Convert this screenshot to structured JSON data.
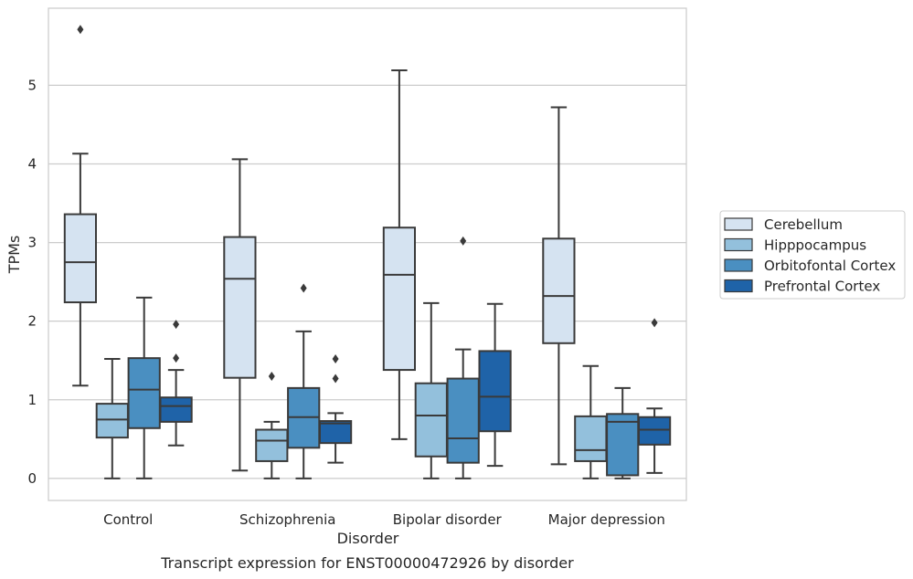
{
  "chart_data": {
    "type": "box",
    "xlabel": "Disorder",
    "ylabel": "TPMs",
    "caption": "Transcript expression for ENST00000472926 by disorder",
    "ylim": [
      -0.28,
      5.98
    ],
    "yticks": [
      "0",
      "1",
      "2",
      "3",
      "4",
      "5"
    ],
    "categories": [
      "Control",
      "Schizophrenia",
      "Bipolar disorder",
      "Major depression"
    ],
    "grid": "horizontal",
    "legend_position": "right",
    "series": [
      {
        "name": "Cerebellum",
        "color": "#d5e3f1",
        "boxes": [
          {
            "whislo": 1.18,
            "q1": 2.24,
            "med": 2.75,
            "q3": 3.36,
            "whishi": 4.13,
            "fliers": [
              5.71
            ]
          },
          {
            "whislo": 0.1,
            "q1": 1.28,
            "med": 2.54,
            "q3": 3.07,
            "whishi": 4.06,
            "fliers": []
          },
          {
            "whislo": 0.5,
            "q1": 1.38,
            "med": 2.59,
            "q3": 3.19,
            "whishi": 5.19,
            "fliers": []
          },
          {
            "whislo": 0.18,
            "q1": 1.72,
            "med": 2.32,
            "q3": 3.05,
            "whishi": 4.72,
            "fliers": []
          }
        ]
      },
      {
        "name": "Hipppocampus",
        "color": "#93c0dc",
        "boxes": [
          {
            "whislo": 0.0,
            "q1": 0.52,
            "med": 0.75,
            "q3": 0.95,
            "whishi": 1.52,
            "fliers": []
          },
          {
            "whislo": 0.0,
            "q1": 0.22,
            "med": 0.48,
            "q3": 0.62,
            "whishi": 0.72,
            "fliers": [
              1.3
            ]
          },
          {
            "whislo": 0.0,
            "q1": 0.28,
            "med": 0.8,
            "q3": 1.21,
            "whishi": 2.23,
            "fliers": []
          },
          {
            "whislo": 0.0,
            "q1": 0.22,
            "med": 0.36,
            "q3": 0.79,
            "whishi": 1.43,
            "fliers": []
          }
        ]
      },
      {
        "name": "Orbitofontal Cortex",
        "color": "#4a8fc1",
        "boxes": [
          {
            "whislo": 0.0,
            "q1": 0.64,
            "med": 1.13,
            "q3": 1.53,
            "whishi": 2.3,
            "fliers": []
          },
          {
            "whislo": 0.0,
            "q1": 0.39,
            "med": 0.78,
            "q3": 1.15,
            "whishi": 1.87,
            "fliers": [
              2.42
            ]
          },
          {
            "whislo": 0.0,
            "q1": 0.2,
            "med": 0.51,
            "q3": 1.27,
            "whishi": 1.64,
            "fliers": [
              3.02
            ]
          },
          {
            "whislo": 0.0,
            "q1": 0.04,
            "med": 0.72,
            "q3": 0.82,
            "whishi": 1.15,
            "fliers": []
          }
        ]
      },
      {
        "name": "Prefrontal Cortex",
        "color": "#1f63a8",
        "boxes": [
          {
            "whislo": 0.42,
            "q1": 0.72,
            "med": 0.92,
            "q3": 1.03,
            "whishi": 1.38,
            "fliers": [
              1.53,
              1.96
            ]
          },
          {
            "whislo": 0.2,
            "q1": 0.45,
            "med": 0.7,
            "q3": 0.73,
            "whishi": 0.83,
            "fliers": [
              1.27,
              1.52
            ]
          },
          {
            "whislo": 0.16,
            "q1": 0.6,
            "med": 1.04,
            "q3": 1.62,
            "whishi": 2.22,
            "fliers": []
          },
          {
            "whislo": 0.07,
            "q1": 0.43,
            "med": 0.62,
            "q3": 0.78,
            "whishi": 0.89,
            "fliers": [
              1.98
            ]
          }
        ]
      }
    ]
  }
}
